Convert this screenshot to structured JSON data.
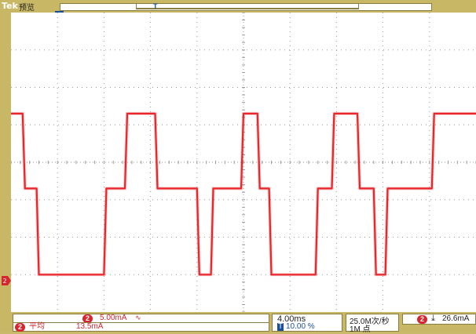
{
  "header": {
    "brand": "Tek",
    "mode": "预览",
    "trigger_position_icon": "T"
  },
  "channel": {
    "number": "2",
    "scale": "5.00mA",
    "coupling_icon": "bandwidth-limit-icon",
    "color": "#e8262b"
  },
  "measurement": {
    "channel": "2",
    "label": "平均",
    "value": "13.5mA"
  },
  "timebase": {
    "time_per_div": "4.00ms",
    "trigger_icon": "T",
    "trigger_position": "10.00 %"
  },
  "acquisition": {
    "sample_rate": "25.0M次/秒",
    "record_length": "1M 点"
  },
  "trigger": {
    "channel": "2",
    "slope_icon": "falling-edge-icon",
    "level": "26.6mA"
  },
  "chart_data": {
    "type": "line",
    "xlabel": "",
    "ylabel": "",
    "grid": true,
    "xlim": [
      0,
      10
    ],
    "ylim": [
      0,
      8
    ],
    "series": [
      {
        "values_x": [
          0.0,
          0.25,
          0.3,
          0.55,
          0.6,
          0.95,
          1.0,
          2.0,
          2.05,
          2.45,
          2.5,
          2.75,
          2.8,
          3.1,
          3.15,
          4.0,
          4.05,
          4.3,
          4.35,
          4.95,
          5.0,
          5.3,
          5.35,
          5.55,
          5.6,
          6.55,
          6.6,
          6.9,
          6.95,
          7.45,
          7.5,
          7.8,
          7.85,
          8.05,
          8.1,
          9.05,
          9.1,
          9.3,
          9.35,
          9.9,
          10.0
        ],
        "values_y": [
          5.3,
          5.3,
          3.3,
          3.3,
          1.0,
          1.0,
          1.0,
          1.0,
          3.3,
          3.3,
          5.3,
          5.3,
          5.3,
          5.3,
          3.3,
          3.3,
          1.0,
          1.0,
          3.3,
          3.3,
          5.3,
          5.3,
          3.3,
          3.3,
          1.0,
          1.0,
          3.3,
          3.3,
          5.3,
          5.3,
          3.3,
          3.3,
          1.0,
          1.0,
          3.3,
          3.3,
          5.3,
          5.3,
          5.3,
          5.3,
          5.3
        ]
      }
    ]
  }
}
